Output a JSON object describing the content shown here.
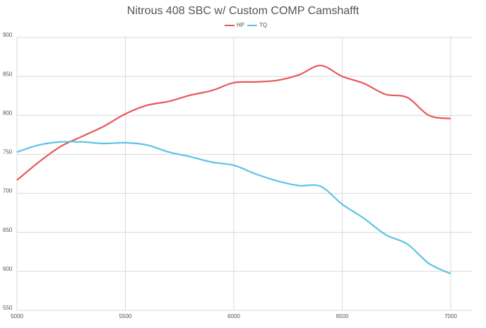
{
  "chart_data": {
    "type": "line",
    "title": "Nitrous 408 SBC w/ Custom COMP Camshafft",
    "x": [
      5000,
      5100,
      5200,
      5300,
      5400,
      5500,
      5600,
      5700,
      5800,
      5900,
      6000,
      6100,
      6200,
      6300,
      6400,
      6500,
      6600,
      6700,
      6800,
      6900,
      7000
    ],
    "series": [
      {
        "name": "HP",
        "color": "#e8585a",
        "values": [
          717,
          740,
          760,
          773,
          786,
          802,
          813,
          818,
          826,
          832,
          842,
          843,
          845,
          852,
          864,
          850,
          841,
          827,
          823,
          800,
          796
        ]
      },
      {
        "name": "TQ",
        "color": "#5bc4e6",
        "values": [
          753,
          762,
          766,
          766,
          764,
          765,
          762,
          753,
          747,
          740,
          736,
          725,
          716,
          710,
          709,
          686,
          668,
          647,
          635,
          610,
          597
        ]
      }
    ],
    "xlim": [
      5000,
      7000
    ],
    "xticks": [
      5000,
      5500,
      6000,
      6500,
      7000
    ],
    "ylim": [
      550,
      900
    ],
    "yticks": [
      550,
      600,
      650,
      700,
      750,
      800,
      850,
      900
    ],
    "grid": true,
    "legend": "top"
  }
}
